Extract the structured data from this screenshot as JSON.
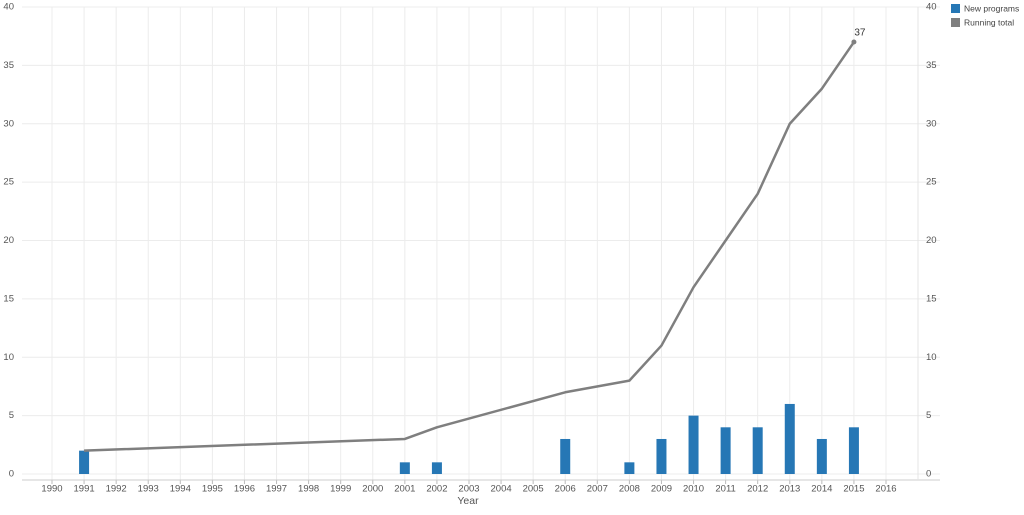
{
  "chart_data": {
    "type": "combo",
    "x_label": "Year",
    "xticks": [
      1990,
      1991,
      1992,
      1993,
      1994,
      1995,
      1996,
      1997,
      1998,
      1999,
      2000,
      2001,
      2002,
      2003,
      2004,
      2005,
      2006,
      2007,
      2008,
      2009,
      2010,
      2011,
      2012,
      2013,
      2014,
      2015,
      2016
    ],
    "ylim": [
      0,
      40
    ],
    "yticks": [
      0,
      5,
      10,
      15,
      20,
      25,
      30,
      35,
      40
    ],
    "y2lim": [
      0,
      40
    ],
    "y2ticks": [
      0,
      5,
      10,
      15,
      20,
      25,
      30,
      35,
      40
    ],
    "grid": true,
    "series": [
      {
        "name": "New programs",
        "type": "bar",
        "color": "#2677b5",
        "x": [
          1991,
          2001,
          2002,
          2006,
          2008,
          2009,
          2010,
          2011,
          2012,
          2013,
          2014,
          2015
        ],
        "values": [
          2,
          1,
          1,
          3,
          1,
          3,
          5,
          4,
          4,
          6,
          3,
          4
        ]
      },
      {
        "name": "Running total",
        "type": "line",
        "axis": "y2",
        "color": "#7f7f7f",
        "x": [
          1991,
          2001,
          2002,
          2006,
          2008,
          2009,
          2010,
          2011,
          2012,
          2013,
          2014,
          2015
        ],
        "values": [
          2,
          3,
          4,
          7,
          8,
          11,
          16,
          20,
          24,
          30,
          33,
          37
        ]
      }
    ]
  }
}
